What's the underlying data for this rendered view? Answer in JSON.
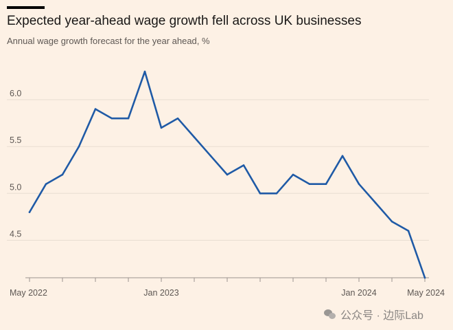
{
  "header": {
    "title": "Expected year-ahead wage growth fell across UK businesses",
    "subtitle": "Annual wage growth forecast for the year ahead, %"
  },
  "watermark": {
    "text": "公众号 · 边际Lab",
    "icon": "wechat-icon"
  },
  "colors": {
    "background": "#fdf1e5",
    "line": "#1f5aa6",
    "grid": "#e8ddd1",
    "axis": "#9b948e"
  },
  "chart_data": {
    "type": "line",
    "title": "Expected year-ahead wage growth fell across UK businesses",
    "subtitle": "Annual wage growth forecast for the year ahead, %",
    "xlabel": "",
    "ylabel": "",
    "x": [
      "2022-05",
      "2022-06",
      "2022-07",
      "2022-08",
      "2022-09",
      "2022-10",
      "2022-11",
      "2022-12",
      "2023-01",
      "2023-02",
      "2023-03",
      "2023-04",
      "2023-05",
      "2023-06",
      "2023-07",
      "2023-08",
      "2023-09",
      "2023-10",
      "2023-11",
      "2023-12",
      "2024-01",
      "2024-02",
      "2024-03",
      "2024-04",
      "2024-05"
    ],
    "series": [
      {
        "values": [
          4.8,
          5.1,
          5.2,
          5.5,
          5.9,
          5.8,
          5.8,
          6.3,
          5.7,
          5.8,
          5.6,
          5.4,
          5.2,
          5.3,
          5.0,
          5.0,
          5.2,
          5.1,
          5.1,
          5.4,
          5.1,
          4.9,
          4.7,
          4.6,
          4.1
        ]
      }
    ],
    "ylim": [
      4.1,
      6.55
    ],
    "y_ticks": [
      4.5,
      5.0,
      5.5,
      6.0
    ],
    "y_tick_labels": [
      "4.5",
      "5.0",
      "5.5",
      "6.0"
    ],
    "x_tick_labels": [
      {
        "index": 0,
        "label": "May 2022"
      },
      {
        "index": 8,
        "label": "Jan 2023"
      },
      {
        "index": 20,
        "label": "Jan 2024"
      },
      {
        "index": 24,
        "label": "May 2024"
      }
    ],
    "x_minor_tick_every": 2,
    "grid": true,
    "legend": "none"
  }
}
